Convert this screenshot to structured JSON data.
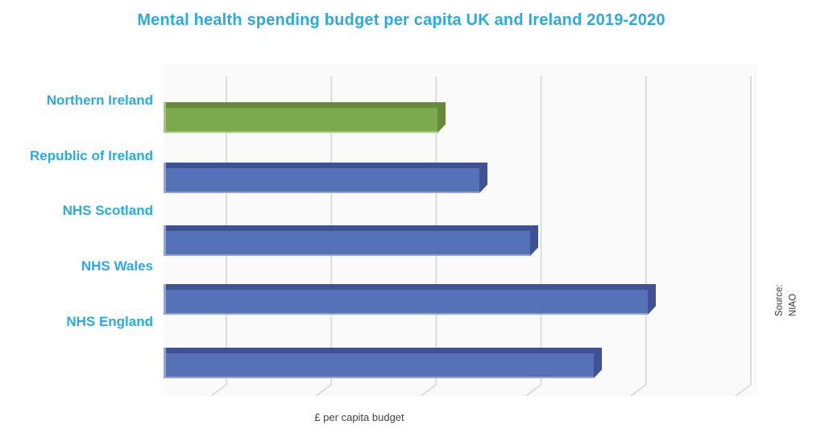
{
  "title": {
    "text": "Mental health spending budget per capita UK and Ireland 2019-2020"
  },
  "x_axis": {
    "label": "£ per capita budget"
  },
  "source_note": {
    "line1": "Source:",
    "line2": "NIAO"
  },
  "colors": {
    "accent_text": "#29ABE2",
    "bar_blue": "#5571B7",
    "bar_blue_dark": "#3E5294",
    "bar_blue_light": "#92A5D2",
    "bar_green": "#7CA94D",
    "bar_green_dark": "#66893A",
    "bar_green_light": "#A9C583",
    "gridline": "#DCDCDC",
    "plot_background": "#FAFAFA",
    "axis_label_text": "#444444",
    "source_text": "#333333"
  },
  "chart_data": {
    "type": "bar",
    "orientation": "horizontal",
    "title": "Mental health spending budget per capita UK and Ireland 2019-2020",
    "xlabel": "£ per capita budget",
    "categories": [
      "Northern Ireland",
      "Republic of Ireland",
      "NHS Scotland",
      "NHS Wales",
      "NHS England"
    ],
    "values": [
      112,
      129,
      150,
      198,
      176
    ],
    "values_estimated": true,
    "unit": "£ per capita",
    "xlim": [
      0,
      243
    ],
    "tick_labels_shown": false,
    "gridlines": {
      "count": 6,
      "orientation": "vertical",
      "style": "3d-floor"
    },
    "bar_colors": [
      "#7CA94D",
      "#5571B7",
      "#5571B7",
      "#5571B7",
      "#5571B7"
    ],
    "bar_dark_colors": [
      "#66893A",
      "#3E5294",
      "#3E5294",
      "#3E5294",
      "#3E5294"
    ],
    "bar_light_colors": [
      "#A9C583",
      "#92A5D2",
      "#92A5D2",
      "#92A5D2",
      "#92A5D2"
    ],
    "category_label_color": "#29ABE2"
  }
}
